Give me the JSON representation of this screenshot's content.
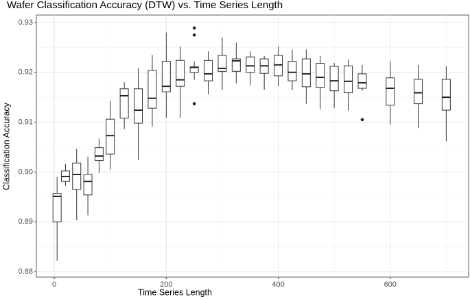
{
  "chart_data": {
    "type": "box",
    "title": "Wafer Classification Accuracy (DTW) vs. Time Series Length",
    "x_label": "Time Series Length",
    "y_label": "Classification Accuracy",
    "x": [
      5,
      20,
      40,
      60,
      80,
      100,
      125,
      150,
      175,
      200,
      225,
      250,
      275,
      300,
      325,
      350,
      375,
      400,
      425,
      450,
      475,
      500,
      525,
      550,
      600,
      650,
      700
    ],
    "whisker_low": [
      0.8822,
      0.8972,
      0.8903,
      0.8913,
      0.8998,
      0.9005,
      0.9086,
      0.9024,
      0.9091,
      0.9109,
      0.9109,
      0.9185,
      0.9156,
      0.9165,
      0.9178,
      0.9174,
      0.9165,
      0.9172,
      0.9164,
      0.9137,
      0.9126,
      0.9128,
      0.9123,
      0.9163,
      0.9095,
      0.9088,
      0.9062
    ],
    "q1": [
      0.89,
      0.8981,
      0.8965,
      0.8954,
      0.9023,
      0.9036,
      0.9108,
      0.9098,
      0.9128,
      0.9161,
      0.9172,
      0.92,
      0.9183,
      0.9202,
      0.9202,
      0.92,
      0.9198,
      0.9193,
      0.9183,
      0.9171,
      0.917,
      0.9163,
      0.9159,
      0.9168,
      0.9134,
      0.9137,
      0.9124
    ],
    "median": [
      0.8951,
      0.8991,
      0.8995,
      0.8981,
      0.9032,
      0.9073,
      0.9153,
      0.9124,
      0.9148,
      0.9172,
      0.9185,
      0.921,
      0.9197,
      0.9208,
      0.9223,
      0.9213,
      0.9213,
      0.9215,
      0.92,
      0.9197,
      0.919,
      0.9183,
      0.9182,
      0.9179,
      0.9168,
      0.9159,
      0.915
    ],
    "q3": [
      0.8957,
      0.9002,
      0.9018,
      0.8995,
      0.9049,
      0.9106,
      0.9167,
      0.9167,
      0.9204,
      0.9222,
      0.9224,
      0.9211,
      0.9224,
      0.9234,
      0.9227,
      0.9231,
      0.9227,
      0.9234,
      0.9222,
      0.9227,
      0.9218,
      0.9212,
      0.9213,
      0.9197,
      0.9189,
      0.9186,
      0.9186
    ],
    "whisker_high": [
      0.899,
      0.9016,
      0.9046,
      0.9031,
      0.9067,
      0.9142,
      0.918,
      0.9208,
      0.9235,
      0.928,
      0.9252,
      0.9222,
      0.9242,
      0.927,
      0.926,
      0.9242,
      0.9233,
      0.9252,
      0.9245,
      0.9246,
      0.9233,
      0.9219,
      0.9226,
      0.9215,
      0.9222,
      0.9215,
      0.9212
    ],
    "outliers": [
      {
        "x": 250,
        "value": 0.9289
      },
      {
        "x": 250,
        "value": 0.9275
      },
      {
        "x": 250,
        "value": 0.9137
      },
      {
        "x": 550,
        "value": 0.9105
      }
    ],
    "xlim": [
      -32,
      740
    ],
    "ylim": [
      0.8789,
      0.9315
    ],
    "xticks": [
      0,
      200,
      400,
      600
    ],
    "yticks": [
      0.88,
      0.89,
      {
        "value": 0.9,
        "label": "0.90"
      },
      0.91,
      0.92,
      0.93
    ],
    "grid": true
  }
}
